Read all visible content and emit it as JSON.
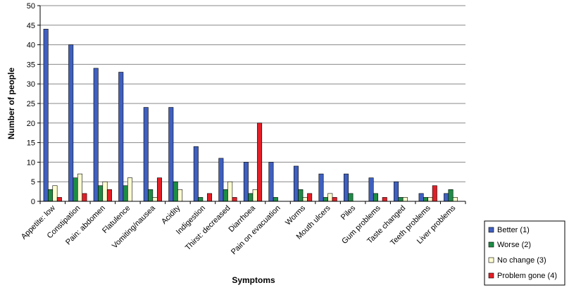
{
  "chart_data": {
    "type": "bar",
    "xlabel": "Symptoms",
    "ylabel": "Number of people",
    "ylim": [
      0,
      50
    ],
    "yticks": [
      0,
      5,
      10,
      15,
      20,
      25,
      30,
      35,
      40,
      45,
      50
    ],
    "grid": "horizontal",
    "legend_position": "bottom-right",
    "categories": [
      "Appetite: low",
      "Constipation",
      "Pain: abdomen",
      "Flatulence",
      "Vomiting/nausea",
      "Acidity",
      "Indigestion",
      "Thirst: decreased",
      "Diarrhoea",
      "Pain on evacuation",
      "Worms",
      "Mouth ulcers",
      "Piles",
      "Gum problems",
      "Taste changed",
      "Teeth problems",
      "Liver problems"
    ],
    "series": [
      {
        "name": "Better (1)",
        "color": "#4060C0",
        "values": [
          44,
          40,
          34,
          33,
          24,
          24,
          14,
          11,
          10,
          10,
          9,
          7,
          7,
          6,
          5,
          2,
          2
        ]
      },
      {
        "name": "Worse (2)",
        "color": "#1E8C46",
        "values": [
          3,
          6,
          4,
          4,
          3,
          5,
          1,
          3,
          2,
          1,
          3,
          1,
          2,
          2,
          1,
          1,
          3
        ]
      },
      {
        "name": "No change (3)",
        "color": "#FFFFD0",
        "values": [
          4,
          7,
          5,
          6,
          1,
          3,
          0,
          5,
          3,
          0,
          1,
          2,
          0,
          0,
          1,
          1,
          1
        ]
      },
      {
        "name": "Problem gone (4)",
        "color": "#E41E26",
        "values": [
          1,
          2,
          3,
          0,
          6,
          0,
          2,
          1,
          20,
          0,
          2,
          1,
          0,
          1,
          0,
          4,
          0
        ]
      }
    ]
  }
}
